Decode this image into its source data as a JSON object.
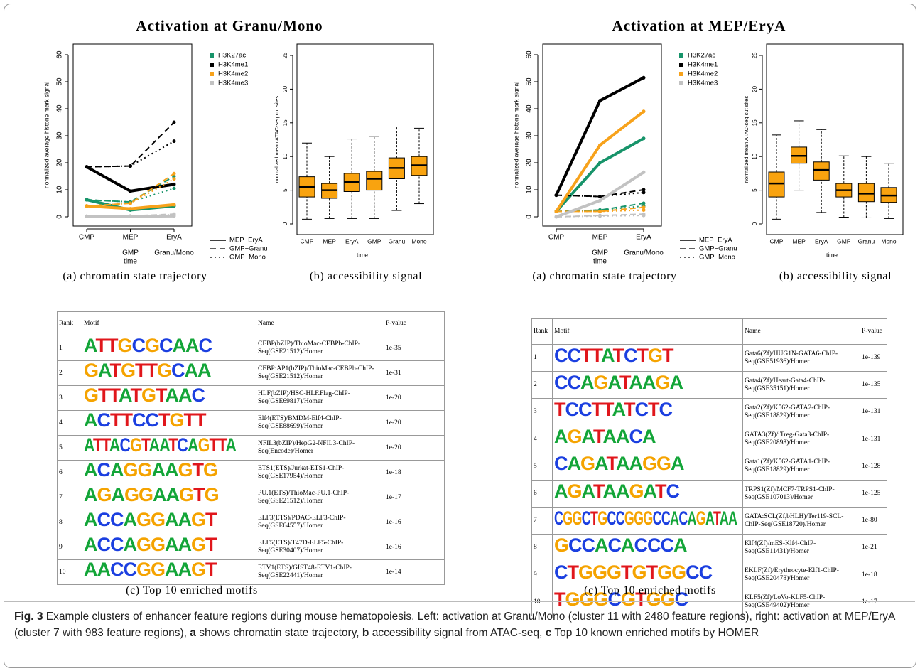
{
  "chart_data": [
    {
      "type": "line",
      "title": "Activation at Granu/Mono",
      "ylabel": "normalized average histone mark signal",
      "xlabel": "time",
      "categories": [
        "CMP",
        "MEP",
        "EryA"
      ],
      "categories2": [
        null,
        "GMP",
        "Granu/Mono"
      ],
      "ylim": [
        0,
        60
      ],
      "yticks": [
        0,
        10,
        20,
        30,
        40,
        50,
        60
      ],
      "trajectories": [
        {
          "name": "MEP−EryA",
          "dash": "solid"
        },
        {
          "name": "GMP−Granu",
          "dash": "dashed"
        },
        {
          "name": "GMP−Mono",
          "dash": "dotted"
        }
      ],
      "series": [
        {
          "name": "H3K27ac",
          "color": "#17946a",
          "values": [
            [
              6.3,
              2.5,
              4
            ],
            [
              6.3,
              5.5,
              15
            ],
            [
              6.3,
              5.5,
              10.5
            ]
          ]
        },
        {
          "name": "H3K4me1",
          "color": "#000000",
          "values": [
            [
              18.5,
              9.5,
              12
            ],
            [
              18.5,
              18.8,
              35
            ],
            [
              18.5,
              18.8,
              28
            ]
          ]
        },
        {
          "name": "H3K4me2",
          "color": "#f7a21b",
          "values": [
            [
              4,
              3,
              4.5
            ],
            [
              4,
              5,
              16
            ],
            [
              4,
              5,
              14
            ]
          ]
        },
        {
          "name": "H3K4me3",
          "color": "#c2c2c2",
          "values": [
            [
              0.2,
              0.2,
              0.3
            ],
            [
              0.2,
              0.3,
              1
            ],
            [
              0.2,
              0.3,
              0.8
            ]
          ]
        }
      ],
      "subcaption": "(a) chromatin state trajectory"
    },
    {
      "type": "box",
      "ylabel": "normalized mean ATAC-seq cut sites",
      "xlabel": "time",
      "categories": [
        "CMP",
        "MEP",
        "EryA",
        "GMP",
        "Granu",
        "Mono"
      ],
      "ylim": [
        0,
        25
      ],
      "yticks": [
        0,
        5,
        10,
        15,
        20,
        25
      ],
      "color": "#f9a30f",
      "boxes": [
        [
          0.7,
          4,
          5.5,
          7,
          12
        ],
        [
          0.8,
          3.8,
          5,
          6,
          10
        ],
        [
          0.8,
          4.8,
          6.2,
          7.5,
          12.6
        ],
        [
          0.8,
          5,
          6.7,
          7.8,
          13
        ],
        [
          2,
          6.7,
          8.3,
          9.8,
          14.4
        ],
        [
          3,
          7.2,
          8.7,
          10,
          14.2
        ]
      ],
      "subcaption": "(b) accessibility signal"
    },
    {
      "type": "line",
      "title": "Activation at MEP/EryA",
      "ylabel": "normalized average histone mark signal",
      "xlabel": "time",
      "categories": [
        "CMP",
        "MEP",
        "EryA"
      ],
      "categories2": [
        null,
        "GMP",
        "Granu/Mono"
      ],
      "ylim": [
        0,
        60
      ],
      "yticks": [
        0,
        10,
        20,
        30,
        40,
        50,
        60
      ],
      "trajectories": [
        {
          "name": "MEP−EryA",
          "dash": "solid"
        },
        {
          "name": "GMP−Granu",
          "dash": "dashed"
        },
        {
          "name": "GMP−Mono",
          "dash": "dotted"
        }
      ],
      "series": [
        {
          "name": "H3K27ac",
          "color": "#17946a",
          "values": [
            [
              2,
              20,
              29
            ],
            [
              2,
              2.5,
              5
            ],
            [
              2,
              2.5,
              4
            ]
          ]
        },
        {
          "name": "H3K4me1",
          "color": "#000000",
          "values": [
            [
              8,
              43,
              51.5
            ],
            [
              8,
              7.5,
              10
            ],
            [
              8,
              7.5,
              9
            ]
          ]
        },
        {
          "name": "H3K4me2",
          "color": "#f7a21b",
          "values": [
            [
              2,
              26.5,
              39
            ],
            [
              2,
              2,
              3.5
            ],
            [
              2,
              2,
              2.5
            ]
          ]
        },
        {
          "name": "H3K4me3",
          "color": "#c2c2c2",
          "values": [
            [
              0,
              6,
              16.5
            ],
            [
              0,
              0.5,
              1
            ],
            [
              0,
              0.3,
              0.5
            ]
          ]
        }
      ],
      "subcaption": "(a) chromatin state trajectory"
    },
    {
      "type": "box",
      "ylabel": "normalized mean ATAC-seq cut sites",
      "xlabel": "time",
      "categories": [
        "CMP",
        "MEP",
        "EryA",
        "GMP",
        "Granu",
        "Mono"
      ],
      "ylim": [
        0,
        25
      ],
      "yticks": [
        0,
        5,
        10,
        15,
        20,
        25
      ],
      "color": "#f9a30f",
      "boxes": [
        [
          0.7,
          4,
          6,
          7.7,
          13.2
        ],
        [
          5,
          9,
          10.1,
          11.4,
          15.3
        ],
        [
          1.7,
          6.5,
          8,
          9.2,
          14
        ],
        [
          1,
          4,
          5,
          6,
          10.1
        ],
        [
          0.9,
          3.3,
          4.5,
          6,
          10
        ],
        [
          0.8,
          3.2,
          4.2,
          5.4,
          9
        ]
      ],
      "subcaption": "(b) accessibility signal"
    }
  ],
  "tables": [
    {
      "columns": [
        "Rank",
        "Motif",
        "Name",
        "P-value"
      ],
      "subcaption": "(c) Top 10 enriched motifs",
      "rows": [
        [
          1,
          "ATTGCGCAAC",
          "CEBP(bZIP)/ThioMac-CEBPb-ChIP-Seq(GSE21512)/Homer",
          "1e-35"
        ],
        [
          2,
          "GATGTTGCAA",
          "CEBP:AP1(bZIP)/ThioMac-CEBPb-ChIP-Seq(GSE21512)/Homer",
          "1e-31"
        ],
        [
          3,
          "GTTATGTAAC",
          "HLF(bZIP)/HSC-HLF.Flag-ChIP-Seq(GSE69817)/Homer",
          "1e-20"
        ],
        [
          4,
          "ACTTCCTGTT",
          "Elf4(ETS)/BMDM-Elf4-ChIP-Seq(GSE88699)/Homer",
          "1e-20"
        ],
        [
          5,
          "ATTACGTAATCAGTTA",
          "NFIL3(bZIP)/HepG2-NFIL3-ChIP-Seq(Encode)/Homer",
          "1e-20"
        ],
        [
          6,
          "ACAGGAAGTG",
          "ETS1(ETS)/Jurkat-ETS1-ChIP-Seq(GSE17954)/Homer",
          "1e-18"
        ],
        [
          7,
          "AGAGGAAGTG",
          "PU.1(ETS)/ThioMac-PU.1-ChIP-Seq(GSE21512)/Homer",
          "1e-17"
        ],
        [
          8,
          "ACCAGGAAGT",
          "ELF3(ETS)/PDAC-ELF3-ChIP-Seq(GSE64557)/Homer",
          "1e-16"
        ],
        [
          9,
          "ACCAGGAAGT",
          "ELF5(ETS)/T47D-ELF5-ChIP-Seq(GSE30407)/Homer",
          "1e-16"
        ],
        [
          10,
          "AACCGGAAGT",
          "ETV1(ETS)/GIST48-ETV1-ChIP-Seq(GSE22441)/Homer",
          "1e-14"
        ]
      ]
    },
    {
      "columns": [
        "Rank",
        "Motif",
        "Name",
        "P-value"
      ],
      "subcaption": "(c) Top 10 enriched motifs",
      "rows": [
        [
          1,
          "CCTTATCTGT",
          "Gata6(Zf)/HUG1N-GATA6-ChIP-Seq(GSE51936)/Homer",
          "1e-139"
        ],
        [
          2,
          "CCAGATAAGA",
          "Gata4(Zf)/Heart-Gata4-ChIP-Seq(GSE35151)/Homer",
          "1e-135"
        ],
        [
          3,
          "TCCTTATCTC",
          "Gata2(Zf)/K562-GATA2-ChIP-Seq(GSE18829)/Homer",
          "1e-131"
        ],
        [
          4,
          "AGATAACA",
          "GATA3(Zf)/iTreg-Gata3-ChIP-Seq(GSE20898)/Homer",
          "1e-131"
        ],
        [
          5,
          "CAGATAAGGA",
          "Gata1(Zf)/K562-GATA1-ChIP-Seq(GSE18829)/Homer",
          "1e-128"
        ],
        [
          6,
          "AGATAAGATC",
          "TRPS1(Zf)/MCF7-TRPS1-ChIP-Seq(GSE107013)/Homer",
          "1e-125"
        ],
        [
          7,
          "CGGCTGCCGGGCCACAGATAA",
          "GATA:SCL(Zf,bHLH)/Ter119-SCL-ChIP-Seq(GSE18720)/Homer",
          "1e-80"
        ],
        [
          8,
          "GCCACACCCA",
          "Klf4(Zf)/mES-Klf4-ChIP-Seq(GSE11431)/Homer",
          "1e-21"
        ],
        [
          9,
          "CTGGGTGTGGCC",
          "EKLF(Zf)/Erythrocyte-Klf1-ChIP-Seq(GSE20478)/Homer",
          "1e-18"
        ],
        [
          10,
          "TGGGCGTGGC",
          "KLF5(Zf)/LoVo-KLF5-ChIP-Seq(GSE49402)/Homer",
          "1e-17"
        ]
      ]
    }
  ],
  "caption": [
    {
      "text": "Fig. 3",
      "bold": true
    },
    {
      "text": " Example clusters of enhancer feature regions during mouse hematopoiesis. Left: activation at Granu/Mono (cluster 11 with 2480 feature regions), right: activation at MEP/EryA (cluster 7 with 983 feature regions), ",
      "bold": false
    },
    {
      "text": "a",
      "bold": true
    },
    {
      "text": " shows chromatin state trajectory, ",
      "bold": false
    },
    {
      "text": "b",
      "bold": true
    },
    {
      "text": " accessibility signal from ATAC-seq, ",
      "bold": false
    },
    {
      "text": "c",
      "bold": true
    },
    {
      "text": " Top 10 known enriched motifs by HOMER",
      "bold": false
    }
  ]
}
